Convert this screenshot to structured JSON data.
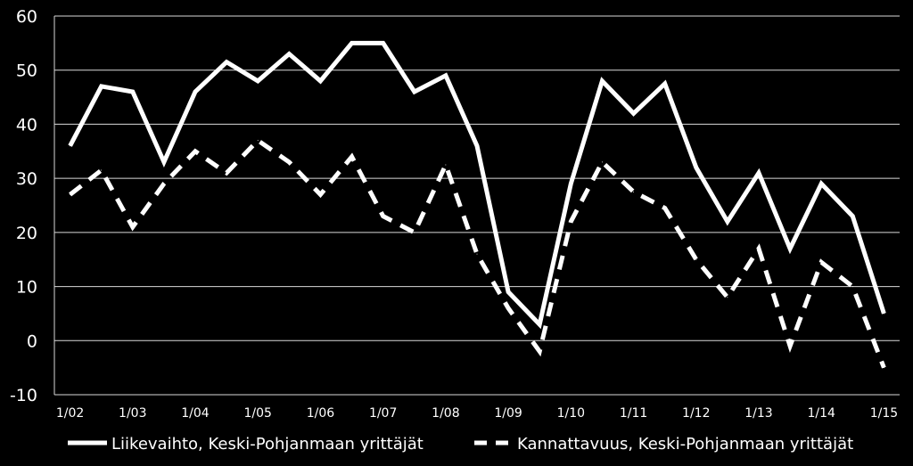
{
  "chart_data": {
    "type": "line",
    "title": "",
    "xlabel": "",
    "ylabel": "",
    "ylim": [
      -10,
      60
    ],
    "yticks": [
      -10,
      0,
      10,
      20,
      30,
      40,
      50,
      60
    ],
    "grid": true,
    "legend_position": "bottom",
    "x_tick_labels": [
      "1/02",
      "1/03",
      "1/04",
      "1/05",
      "1/06",
      "1/07",
      "1/08",
      "1/09",
      "1/10",
      "1/11",
      "1/12",
      "1/13",
      "1/14",
      "1/15"
    ],
    "series": [
      {
        "name": "Liikevaihto, Keski-Pohjanmaan yrittäjät",
        "style": "solid",
        "color": "#ffffff",
        "values": [
          36,
          47,
          46,
          33,
          46,
          51.5,
          48,
          53,
          48,
          55,
          55,
          46,
          49,
          36,
          9,
          3,
          29,
          48,
          42,
          47.5,
          32,
          22,
          31,
          17,
          29,
          23,
          5
        ]
      },
      {
        "name": "Kannattavuus, Keski-Pohjanmaan yrittäjät",
        "style": "dashed",
        "color": "#ffffff",
        "values": [
          27,
          31.5,
          21,
          29,
          35,
          31,
          37,
          33,
          27,
          34,
          23,
          20,
          32.5,
          16,
          6,
          -2,
          22,
          33,
          27.5,
          24.5,
          15,
          8,
          17,
          -1,
          14.5,
          10,
          -5
        ]
      }
    ]
  }
}
